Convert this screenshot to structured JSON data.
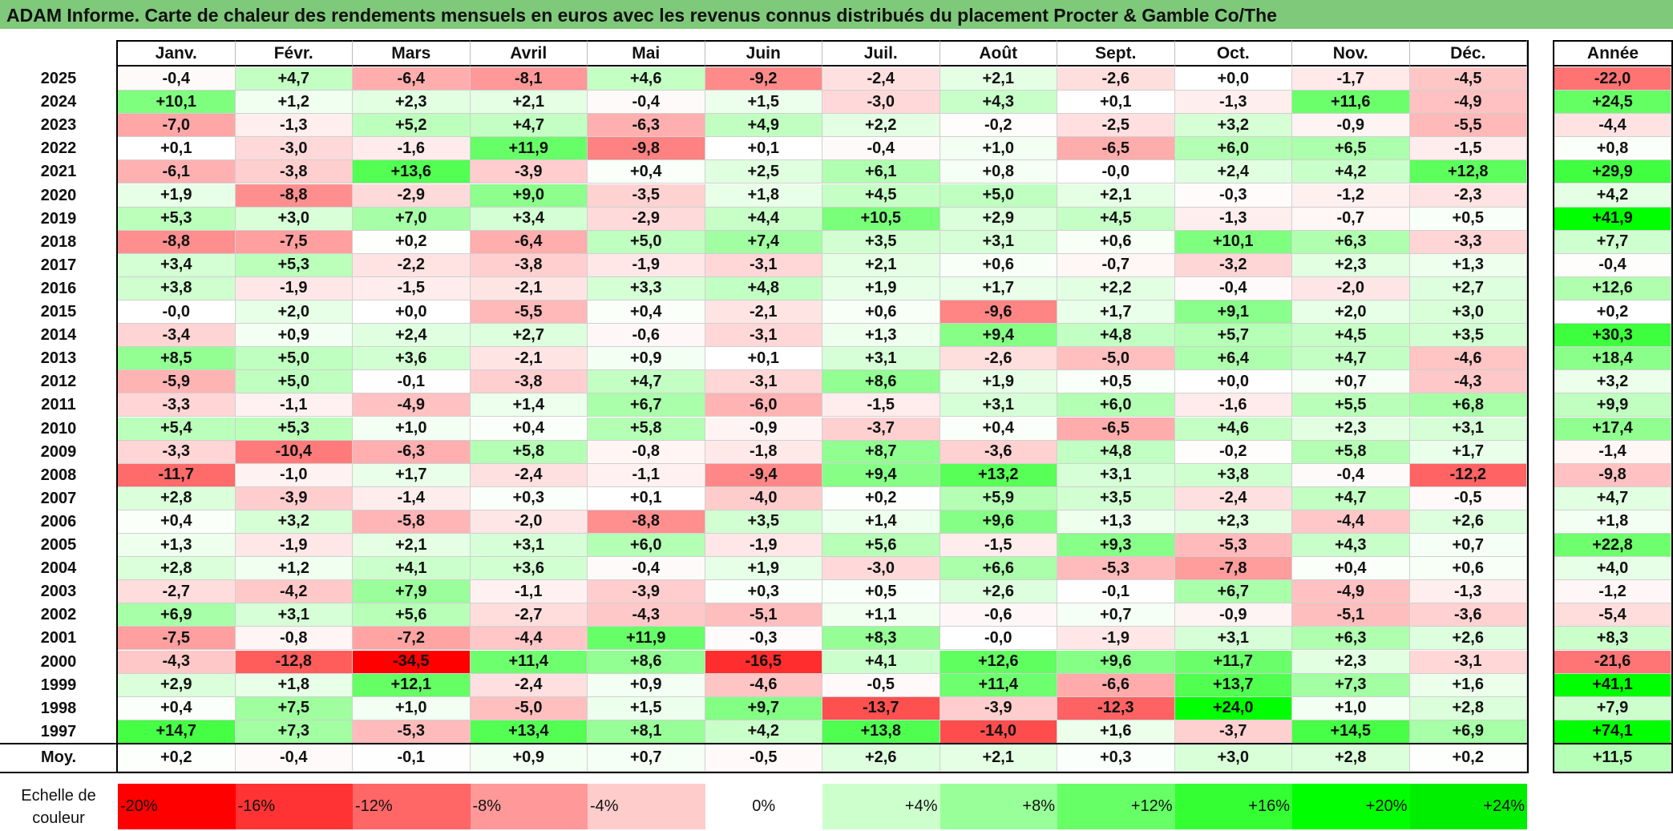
{
  "title": "ADAM Informe. Carte de chaleur des rendements mensuels en euros avec les revenus connus distribués du placement Procter & Gamble Co/The",
  "chart_data": {
    "type": "heatmap",
    "months": [
      "Janv.",
      "Févr.",
      "Mars",
      "Avril",
      "Mai",
      "Juin",
      "Juil.",
      "Août",
      "Sept.",
      "Oct.",
      "Nov.",
      "Déc."
    ],
    "year_header": "Année",
    "rows": [
      {
        "year": "2025",
        "values": [
          "-0,4",
          "+4,7",
          "-6,4",
          "-8,1",
          "+4,6",
          "-9,2",
          "-2,4",
          "+2,1",
          "-2,6",
          "+0,0",
          "-1,7",
          "-4,5"
        ],
        "annual": "-22,0"
      },
      {
        "year": "2024",
        "values": [
          "+10,1",
          "+1,2",
          "+2,3",
          "+2,1",
          "-0,4",
          "+1,5",
          "-3,0",
          "+4,3",
          "+0,1",
          "-1,3",
          "+11,6",
          "-4,9"
        ],
        "annual": "+24,5"
      },
      {
        "year": "2023",
        "values": [
          "-7,0",
          "-1,3",
          "+5,2",
          "+4,7",
          "-6,3",
          "+4,9",
          "+2,2",
          "-0,2",
          "-2,5",
          "+3,2",
          "-0,9",
          "-5,5"
        ],
        "annual": "-4,4"
      },
      {
        "year": "2022",
        "values": [
          "+0,1",
          "-3,0",
          "-1,6",
          "+11,9",
          "-9,8",
          "+0,1",
          "-0,4",
          "+1,0",
          "-6,5",
          "+6,0",
          "+6,5",
          "-1,5"
        ],
        "annual": "+0,8"
      },
      {
        "year": "2021",
        "values": [
          "-6,1",
          "-3,8",
          "+13,6",
          "-3,9",
          "+0,4",
          "+2,5",
          "+6,1",
          "+0,8",
          "-0,0",
          "+2,4",
          "+4,2",
          "+12,8"
        ],
        "annual": "+29,9"
      },
      {
        "year": "2020",
        "values": [
          "+1,9",
          "-8,8",
          "-2,9",
          "+9,0",
          "-3,5",
          "+1,8",
          "+4,5",
          "+5,0",
          "+2,1",
          "-0,3",
          "-1,2",
          "-2,3"
        ],
        "annual": "+4,2"
      },
      {
        "year": "2019",
        "values": [
          "+5,3",
          "+3,0",
          "+7,0",
          "+3,4",
          "-2,9",
          "+4,4",
          "+10,5",
          "+2,9",
          "+4,5",
          "-1,3",
          "-0,7",
          "+0,5"
        ],
        "annual": "+41,9"
      },
      {
        "year": "2018",
        "values": [
          "-8,8",
          "-7,5",
          "+0,2",
          "-6,4",
          "+5,0",
          "+7,4",
          "+3,5",
          "+3,1",
          "+0,6",
          "+10,1",
          "+6,3",
          "-3,3"
        ],
        "annual": "+7,7"
      },
      {
        "year": "2017",
        "values": [
          "+3,4",
          "+5,3",
          "-2,2",
          "-3,8",
          "-1,9",
          "-3,1",
          "+2,1",
          "+0,6",
          "-0,7",
          "-3,2",
          "+2,3",
          "+1,3"
        ],
        "annual": "-0,4"
      },
      {
        "year": "2016",
        "values": [
          "+3,8",
          "-1,9",
          "-1,5",
          "-2,1",
          "+3,3",
          "+4,8",
          "+1,9",
          "+1,7",
          "+2,2",
          "-0,4",
          "-2,0",
          "+2,7"
        ],
        "annual": "+12,6"
      },
      {
        "year": "2015",
        "values": [
          "-0,0",
          "+2,0",
          "+0,0",
          "-5,5",
          "+0,4",
          "-2,1",
          "+0,6",
          "-9,6",
          "+1,7",
          "+9,1",
          "+2,0",
          "+3,0"
        ],
        "annual": "+0,2"
      },
      {
        "year": "2014",
        "values": [
          "-3,4",
          "+0,9",
          "+2,4",
          "+2,7",
          "-0,6",
          "-3,1",
          "+1,3",
          "+9,4",
          "+4,8",
          "+5,7",
          "+4,5",
          "+3,5"
        ],
        "annual": "+30,3"
      },
      {
        "year": "2013",
        "values": [
          "+8,5",
          "+5,0",
          "+3,6",
          "-2,1",
          "+0,9",
          "+0,1",
          "+3,1",
          "-2,6",
          "-5,0",
          "+6,4",
          "+4,7",
          "-4,6"
        ],
        "annual": "+18,4"
      },
      {
        "year": "2012",
        "values": [
          "-5,9",
          "+5,0",
          "-0,1",
          "-3,8",
          "+4,7",
          "-3,1",
          "+8,6",
          "+1,9",
          "+0,5",
          "+0,0",
          "+0,7",
          "-4,3"
        ],
        "annual": "+3,2"
      },
      {
        "year": "2011",
        "values": [
          "-3,3",
          "-1,1",
          "-4,9",
          "+1,4",
          "+6,7",
          "-6,0",
          "-1,5",
          "+3,1",
          "+6,0",
          "-1,6",
          "+5,5",
          "+6,8"
        ],
        "annual": "+9,9"
      },
      {
        "year": "2010",
        "values": [
          "+5,4",
          "+5,3",
          "+1,0",
          "+0,4",
          "+5,8",
          "-0,9",
          "-3,7",
          "+0,4",
          "-6,5",
          "+4,6",
          "+2,3",
          "+3,1"
        ],
        "annual": "+17,4"
      },
      {
        "year": "2009",
        "values": [
          "-3,3",
          "-10,4",
          "-6,3",
          "+5,8",
          "-0,8",
          "-1,8",
          "+8,7",
          "-3,6",
          "+4,8",
          "-0,2",
          "+5,8",
          "+1,7"
        ],
        "annual": "-1,4"
      },
      {
        "year": "2008",
        "values": [
          "-11,7",
          "-1,0",
          "+1,7",
          "-2,4",
          "-1,1",
          "-9,4",
          "+9,4",
          "+13,2",
          "+3,1",
          "+3,8",
          "-0,4",
          "-12,2"
        ],
        "annual": "-9,8"
      },
      {
        "year": "2007",
        "values": [
          "+2,8",
          "-3,9",
          "-1,4",
          "+0,3",
          "+0,1",
          "-4,0",
          "+0,2",
          "+5,9",
          "+3,5",
          "-2,4",
          "+4,7",
          "-0,5"
        ],
        "annual": "+4,7"
      },
      {
        "year": "2006",
        "values": [
          "+0,4",
          "+3,2",
          "-5,8",
          "-2,0",
          "-8,8",
          "+3,5",
          "+1,4",
          "+9,6",
          "+1,3",
          "+2,3",
          "-4,4",
          "+2,6"
        ],
        "annual": "+1,8"
      },
      {
        "year": "2005",
        "values": [
          "+1,3",
          "-1,9",
          "+2,1",
          "+3,1",
          "+6,0",
          "-1,9",
          "+5,6",
          "-1,5",
          "+9,3",
          "-5,3",
          "+4,3",
          "+0,7"
        ],
        "annual": "+22,8"
      },
      {
        "year": "2004",
        "values": [
          "+2,8",
          "+1,2",
          "+4,1",
          "+3,6",
          "-0,4",
          "+1,9",
          "-3,0",
          "+6,6",
          "-5,3",
          "-7,8",
          "+0,4",
          "+0,6"
        ],
        "annual": "+4,0"
      },
      {
        "year": "2003",
        "values": [
          "-2,7",
          "-4,2",
          "+7,9",
          "-1,1",
          "-3,9",
          "+0,3",
          "+0,5",
          "+2,6",
          "-0,1",
          "+6,7",
          "-4,9",
          "-1,3"
        ],
        "annual": "-1,2"
      },
      {
        "year": "2002",
        "values": [
          "+6,9",
          "+3,1",
          "+5,6",
          "-2,7",
          "-4,3",
          "-5,1",
          "+1,1",
          "-0,6",
          "+0,7",
          "-0,9",
          "-5,1",
          "-3,6"
        ],
        "annual": "-5,4"
      },
      {
        "year": "2001",
        "values": [
          "-7,5",
          "-0,8",
          "-7,2",
          "-4,4",
          "+11,9",
          "-0,3",
          "+8,3",
          "-0,0",
          "-1,9",
          "+3,1",
          "+6,3",
          "+2,6"
        ],
        "annual": "+8,3"
      },
      {
        "year": "2000",
        "values": [
          "-4,3",
          "-12,8",
          "-34,5",
          "+11,4",
          "+8,6",
          "-16,5",
          "+4,1",
          "+12,6",
          "+9,6",
          "+11,7",
          "+2,3",
          "-3,1"
        ],
        "annual": "-21,6"
      },
      {
        "year": "1999",
        "values": [
          "+2,9",
          "+1,8",
          "+12,1",
          "-2,4",
          "+0,9",
          "-4,6",
          "-0,5",
          "+11,4",
          "-6,6",
          "+13,7",
          "+7,3",
          "+1,6"
        ],
        "annual": "+41,1"
      },
      {
        "year": "1998",
        "values": [
          "+0,4",
          "+7,5",
          "+1,0",
          "-5,0",
          "+1,5",
          "+9,7",
          "-13,7",
          "-3,9",
          "-12,3",
          "+24,0",
          "+1,0",
          "+2,8"
        ],
        "annual": "+7,9"
      },
      {
        "year": "1997",
        "values": [
          "+14,7",
          "+7,3",
          "-5,3",
          "+13,4",
          "+8,1",
          "+4,2",
          "+13,8",
          "-14,0",
          "+1,6",
          "-3,7",
          "+14,5",
          "+6,9"
        ],
        "annual": "+74,1"
      }
    ],
    "average": {
      "label": "Moy.",
      "values": [
        "+0,2",
        "-0,4",
        "-0,1",
        "+0,9",
        "+0,7",
        "-0,5",
        "+2,6",
        "+2,1",
        "+0,3",
        "+3,0",
        "+2,8",
        "+0,2"
      ],
      "annual": "+11,5"
    },
    "color_scale": {
      "label_line1": "Echelle de",
      "label_line2": "couleur",
      "stops": [
        {
          "label": "-20%",
          "value": -20,
          "color": "#ff0000"
        },
        {
          "label": "-16%",
          "value": -16,
          "color": "#ff3333"
        },
        {
          "label": "-12%",
          "value": -12,
          "color": "#ff6666"
        },
        {
          "label": "-8%",
          "value": -8,
          "color": "#ff9999"
        },
        {
          "label": "-4%",
          "value": -4,
          "color": "#ffcccc"
        },
        {
          "label": "0%",
          "value": 0,
          "color": "#ffffff"
        },
        {
          "label": "+4%",
          "value": 4,
          "color": "#ccffcc"
        },
        {
          "label": "+8%",
          "value": 8,
          "color": "#99ff99"
        },
        {
          "label": "+12%",
          "value": 12,
          "color": "#66ff66"
        },
        {
          "label": "+16%",
          "value": 16,
          "color": "#33ff33"
        },
        {
          "label": "+20%",
          "value": 20,
          "color": "#00ff00"
        },
        {
          "label": "+24%",
          "value": 24,
          "color": "#00ee00"
        }
      ]
    }
  }
}
